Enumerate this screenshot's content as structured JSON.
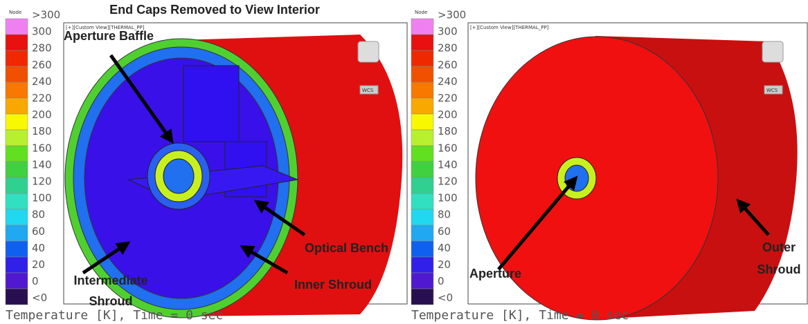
{
  "title": "End Caps Removed to View Interior",
  "legend": {
    "header": "Node",
    "labels": [
      ">300",
      "300",
      "280",
      "260",
      "240",
      "220",
      "200",
      "180",
      "160",
      "140",
      "120",
      "100",
      "80",
      "60",
      "40",
      "20",
      "0",
      "<0"
    ],
    "colors": [
      "#f080f0",
      "#e81010",
      "#f02800",
      "#f05000",
      "#f87800",
      "#f8a800",
      "#f8f800",
      "#b8f030",
      "#60e020",
      "#40d040",
      "#30d090",
      "#30e0c0",
      "#20d8f0",
      "#20a8f0",
      "#1060f0",
      "#3020e8",
      "#5018d0",
      "#281050"
    ]
  },
  "panels": [
    {
      "view_label": "[+][Custom View][THERMAL_PP]",
      "cube_label": "WCS",
      "caption": "Temperature [K], Time = 0 sec",
      "annotations": [
        {
          "lines": [
            "Aperture Baffle"
          ]
        },
        {
          "lines": [
            "Optical Bench"
          ]
        },
        {
          "lines": [
            "Inner Shroud"
          ]
        },
        {
          "lines": [
            "Intermediate",
            "Shroud"
          ]
        }
      ]
    },
    {
      "view_label": "[+][Custom View][THERMAL_PP]",
      "cube_label": "WCS",
      "caption": "Temperature [K], Time = 0 sec",
      "annotations": [
        {
          "lines": [
            "Aperture"
          ]
        },
        {
          "lines": [
            "Outer",
            "Shroud"
          ]
        }
      ]
    }
  ]
}
